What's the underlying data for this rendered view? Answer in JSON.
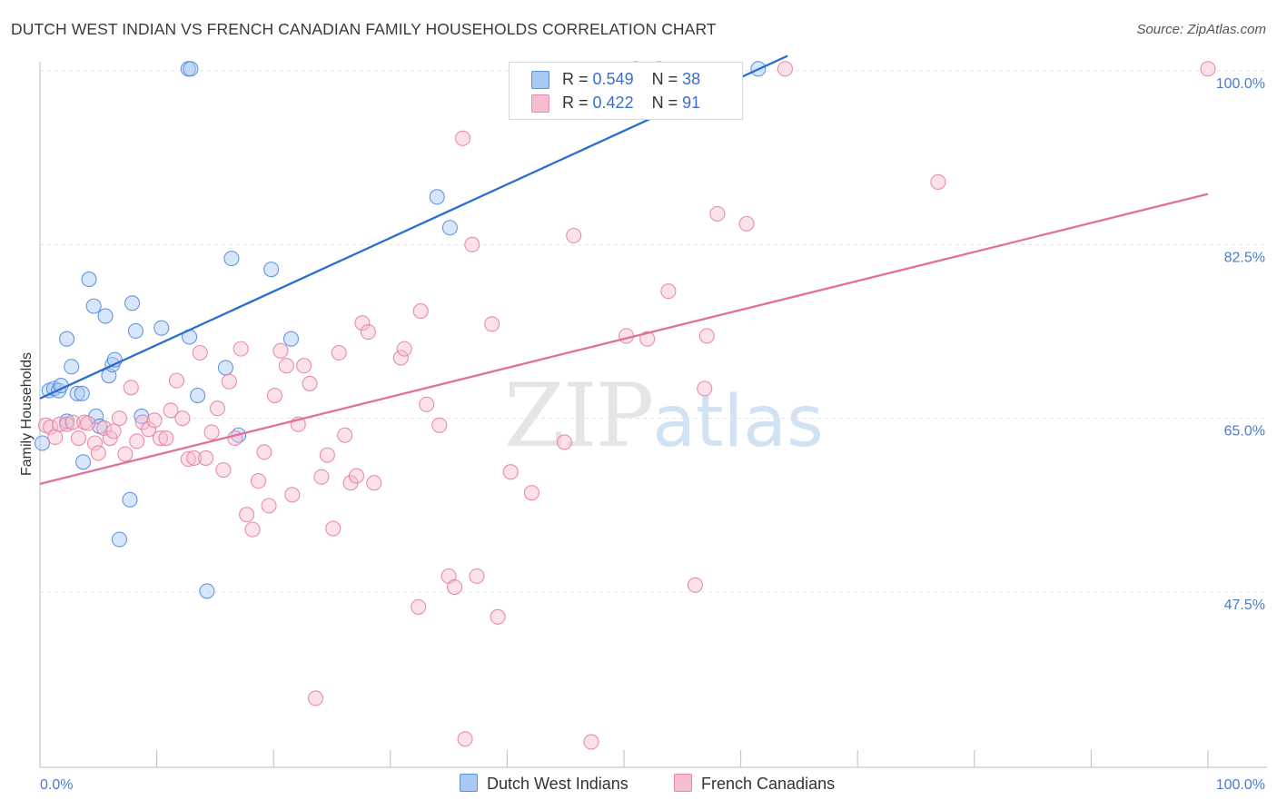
{
  "header": {
    "title": "DUTCH WEST INDIAN VS FRENCH CANADIAN FAMILY HOUSEHOLDS CORRELATION CHART",
    "source": "Source: ZipAtlas.com"
  },
  "watermark": {
    "zip": "ZIP",
    "atlas": "atlas"
  },
  "legend_top": {
    "rows": [
      {
        "r_label": "R =",
        "r_value": "0.549",
        "n_label": "N =",
        "n_value": "38",
        "color": "#a9c8f2"
      },
      {
        "r_label": "R =",
        "r_value": "0.422",
        "n_label": "N =",
        "n_value": "91",
        "color": "#f6bcd0"
      }
    ]
  },
  "legend_bottom": {
    "items": [
      {
        "label": "Dutch West Indians",
        "color": "#a9c8f2"
      },
      {
        "label": "French Canadians",
        "color": "#f6bcd0"
      }
    ]
  },
  "chart_data": {
    "type": "scatter",
    "title": "DUTCH WEST INDIAN VS FRENCH CANADIAN FAMILY HOUSEHOLDS CORRELATION CHART",
    "xlabel": "",
    "ylabel": "Family Households",
    "xlim": [
      0,
      100
    ],
    "ylim": [
      30.5,
      102
    ],
    "x_tick_labels": [
      "0.0%",
      "100.0%"
    ],
    "y_ticks": [
      47.5,
      65.0,
      82.5,
      100.0
    ],
    "y_tick_labels": [
      "47.5%",
      "65.0%",
      "82.5%",
      "100.0%"
    ],
    "grid": true,
    "legend_position": "top-center",
    "series": [
      {
        "name": "Dutch West Indians",
        "color": "#4a86e0",
        "fill": "#a9c8f2",
        "line_color": "#2a6fd0",
        "trend": {
          "x0": 0,
          "y0": 67.0,
          "x1": 64,
          "y1": 101.5
        },
        "points": [
          [
            0.2,
            62.5
          ],
          [
            0.8,
            67.8
          ],
          [
            1.2,
            68.0
          ],
          [
            1.6,
            67.8
          ],
          [
            1.8,
            68.3
          ],
          [
            2.3,
            64.7
          ],
          [
            2.3,
            73.0
          ],
          [
            2.7,
            70.2
          ],
          [
            3.2,
            67.5
          ],
          [
            3.6,
            67.5
          ],
          [
            3.7,
            60.6
          ],
          [
            4.2,
            79.0
          ],
          [
            4.6,
            76.3
          ],
          [
            4.8,
            65.2
          ],
          [
            5.1,
            64.2
          ],
          [
            5.6,
            75.3
          ],
          [
            5.9,
            69.3
          ],
          [
            6.2,
            70.4
          ],
          [
            6.4,
            70.9
          ],
          [
            6.8,
            52.8
          ],
          [
            7.7,
            56.8
          ],
          [
            7.9,
            76.6
          ],
          [
            8.2,
            73.8
          ],
          [
            8.7,
            65.2
          ],
          [
            10.4,
            74.1
          ],
          [
            12.7,
            100.2
          ],
          [
            12.9,
            100.2
          ],
          [
            12.8,
            73.2
          ],
          [
            13.5,
            67.3
          ],
          [
            14.3,
            47.6
          ],
          [
            15.9,
            70.1
          ],
          [
            16.4,
            81.1
          ],
          [
            17.0,
            63.3
          ],
          [
            19.8,
            80.0
          ],
          [
            21.5,
            73.0
          ],
          [
            34.0,
            87.3
          ],
          [
            35.1,
            84.2
          ],
          [
            61.5,
            100.2
          ]
        ]
      },
      {
        "name": "French Canadians",
        "color": "#e57aa0",
        "fill": "#f6bcd0",
        "line_color": "#e0709a",
        "trend": {
          "x0": 0,
          "y0": 58.4,
          "x1": 100,
          "y1": 87.6
        },
        "points": [
          [
            0.5,
            64.3
          ],
          [
            0.9,
            64.1
          ],
          [
            1.3,
            63.1
          ],
          [
            1.7,
            64.4
          ],
          [
            2.3,
            64.4
          ],
          [
            2.8,
            64.6
          ],
          [
            3.3,
            63.0
          ],
          [
            3.8,
            64.6
          ],
          [
            4.1,
            64.5
          ],
          [
            4.7,
            62.5
          ],
          [
            5.0,
            61.5
          ],
          [
            5.5,
            64.0
          ],
          [
            6.0,
            63.0
          ],
          [
            6.3,
            63.7
          ],
          [
            6.8,
            65.0
          ],
          [
            7.3,
            61.4
          ],
          [
            7.8,
            68.1
          ],
          [
            8.3,
            62.7
          ],
          [
            8.8,
            64.6
          ],
          [
            9.3,
            63.9
          ],
          [
            9.8,
            64.8
          ],
          [
            10.3,
            63.0
          ],
          [
            10.8,
            63.0
          ],
          [
            11.2,
            65.8
          ],
          [
            11.7,
            68.8
          ],
          [
            12.2,
            65.0
          ],
          [
            12.7,
            60.9
          ],
          [
            13.2,
            61.0
          ],
          [
            13.7,
            71.6
          ],
          [
            14.2,
            61.0
          ],
          [
            14.7,
            63.6
          ],
          [
            15.2,
            66.0
          ],
          [
            15.7,
            59.8
          ],
          [
            16.2,
            68.7
          ],
          [
            16.7,
            63.0
          ],
          [
            17.2,
            72.0
          ],
          [
            17.7,
            55.3
          ],
          [
            18.2,
            53.8
          ],
          [
            18.7,
            58.7
          ],
          [
            19.2,
            61.6
          ],
          [
            19.6,
            56.2
          ],
          [
            20.1,
            67.3
          ],
          [
            20.6,
            71.8
          ],
          [
            21.1,
            70.3
          ],
          [
            21.6,
            57.3
          ],
          [
            22.1,
            64.4
          ],
          [
            22.6,
            70.3
          ],
          [
            23.1,
            68.5
          ],
          [
            23.6,
            36.8
          ],
          [
            24.1,
            59.1
          ],
          [
            24.6,
            61.3
          ],
          [
            25.1,
            53.9
          ],
          [
            25.6,
            71.6
          ],
          [
            26.1,
            63.3
          ],
          [
            26.6,
            58.5
          ],
          [
            27.1,
            59.2
          ],
          [
            27.6,
            74.6
          ],
          [
            28.1,
            73.7
          ],
          [
            28.6,
            58.5
          ],
          [
            30.9,
            71.1
          ],
          [
            31.2,
            72.0
          ],
          [
            32.4,
            46.0
          ],
          [
            32.6,
            75.8
          ],
          [
            33.1,
            66.4
          ],
          [
            34.2,
            64.3
          ],
          [
            35.0,
            49.1
          ],
          [
            35.5,
            48.0
          ],
          [
            36.2,
            93.2
          ],
          [
            37.0,
            82.5
          ],
          [
            37.4,
            49.1
          ],
          [
            38.7,
            74.5
          ],
          [
            39.2,
            45.0
          ],
          [
            40.3,
            59.6
          ],
          [
            42.1,
            57.5
          ],
          [
            44.9,
            62.6
          ],
          [
            45.7,
            83.4
          ],
          [
            47.2,
            32.4
          ],
          [
            50.2,
            73.3
          ],
          [
            51.0,
            100.2
          ],
          [
            52.0,
            73.0
          ],
          [
            53.8,
            77.8
          ],
          [
            53.0,
            100.2
          ],
          [
            56.1,
            48.2
          ],
          [
            56.9,
            68.0
          ],
          [
            57.1,
            73.3
          ],
          [
            58.0,
            85.6
          ],
          [
            60.5,
            84.6
          ],
          [
            63.8,
            100.2
          ],
          [
            76.9,
            88.8
          ],
          [
            100.0,
            100.2
          ],
          [
            36.4,
            32.7
          ]
        ]
      }
    ]
  }
}
